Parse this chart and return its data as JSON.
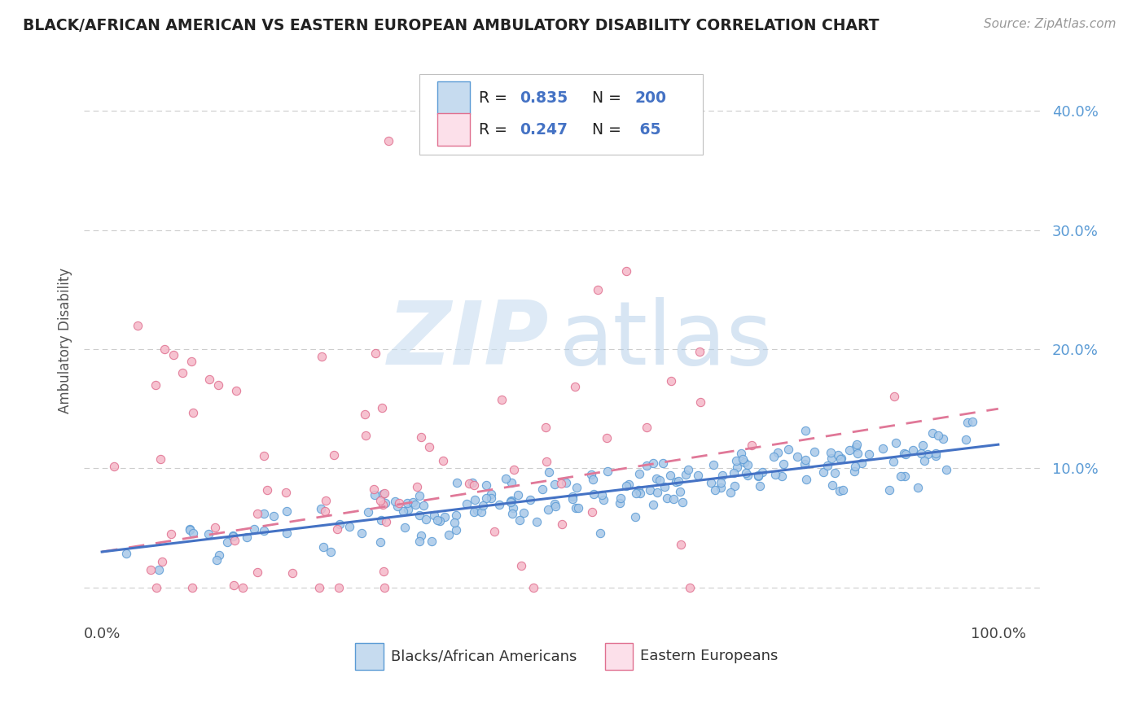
{
  "title": "BLACK/AFRICAN AMERICAN VS EASTERN EUROPEAN AMBULATORY DISABILITY CORRELATION CHART",
  "source": "Source: ZipAtlas.com",
  "ylabel": "Ambulatory Disability",
  "legend_blue_label": "Blacks/African Americans",
  "legend_pink_label": "Eastern Europeans",
  "blue_R": 0.835,
  "blue_N": 200,
  "pink_R": 0.247,
  "pink_N": 65,
  "blue_color": "#a8c8e8",
  "pink_color": "#f5b8c8",
  "blue_edge_color": "#5b9bd5",
  "pink_edge_color": "#e07090",
  "blue_fill": "#c6dbef",
  "pink_fill": "#fce0ea",
  "blue_line_color": "#4472c4",
  "pink_line_color": "#e07898",
  "watermark_zip_color": "#c8ddf0",
  "watermark_atlas_color": "#b0cce8",
  "yticks": [
    0.0,
    0.1,
    0.2,
    0.3,
    0.4
  ],
  "ytick_labels": [
    "",
    "10.0%",
    "20.0%",
    "30.0%",
    "40.0%"
  ],
  "background_color": "#ffffff",
  "grid_color": "#cccccc",
  "blue_slope": 0.09,
  "blue_intercept": 0.03,
  "pink_slope": 0.12,
  "pink_intercept": 0.03
}
